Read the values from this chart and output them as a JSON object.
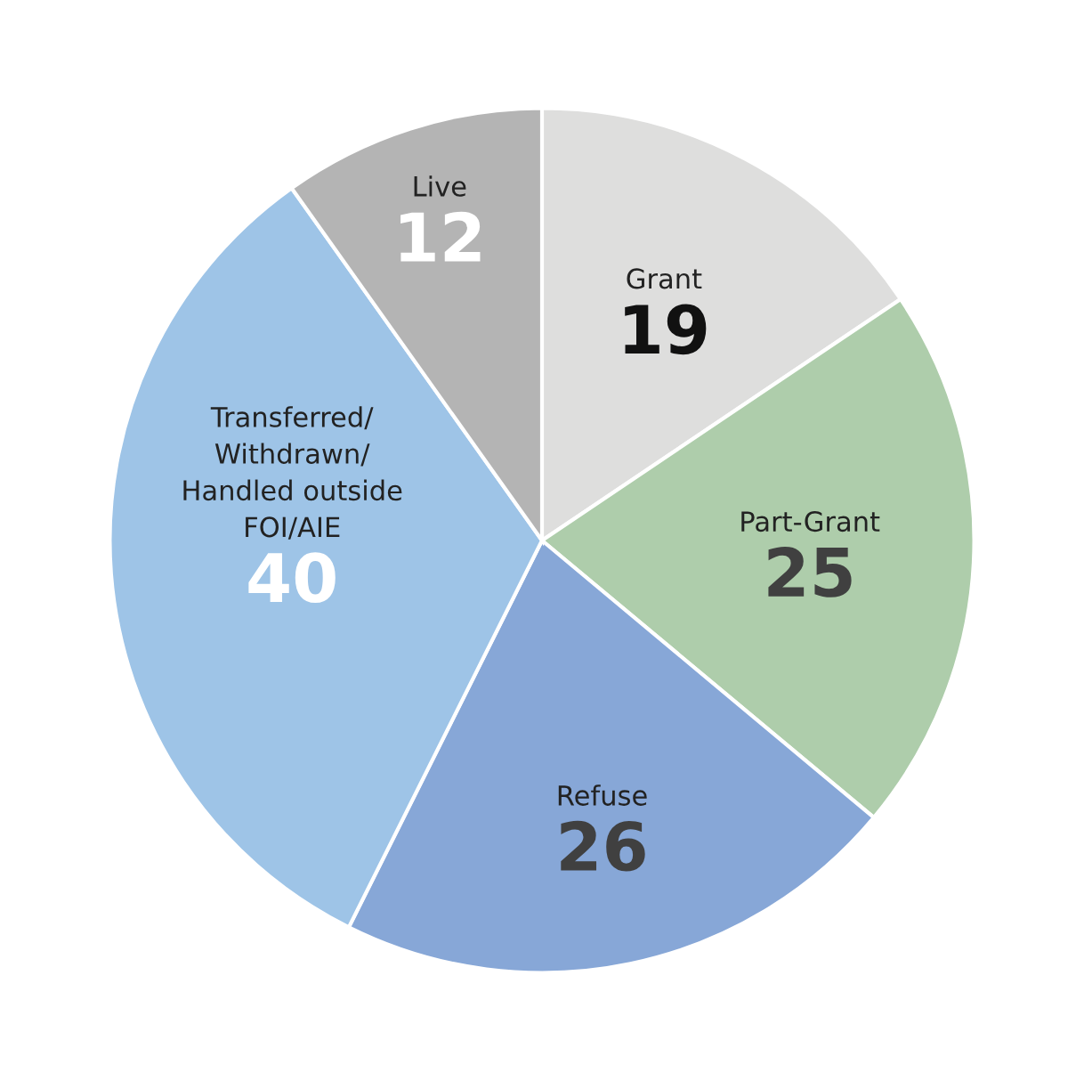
{
  "chart_data": {
    "type": "pie",
    "categories": [
      "Grant",
      "Part-Grant",
      "Refuse",
      "Transferred/\nWithdrawn/\nHandled outside\nFOI/AIE",
      "Live"
    ],
    "values": [
      19,
      25,
      26,
      40,
      12
    ],
    "colors": [
      "#dededd",
      "#aecdab",
      "#87a7d7",
      "#9ec4e7",
      "#b4b4b4"
    ],
    "data_labels": true,
    "legend": false
  }
}
